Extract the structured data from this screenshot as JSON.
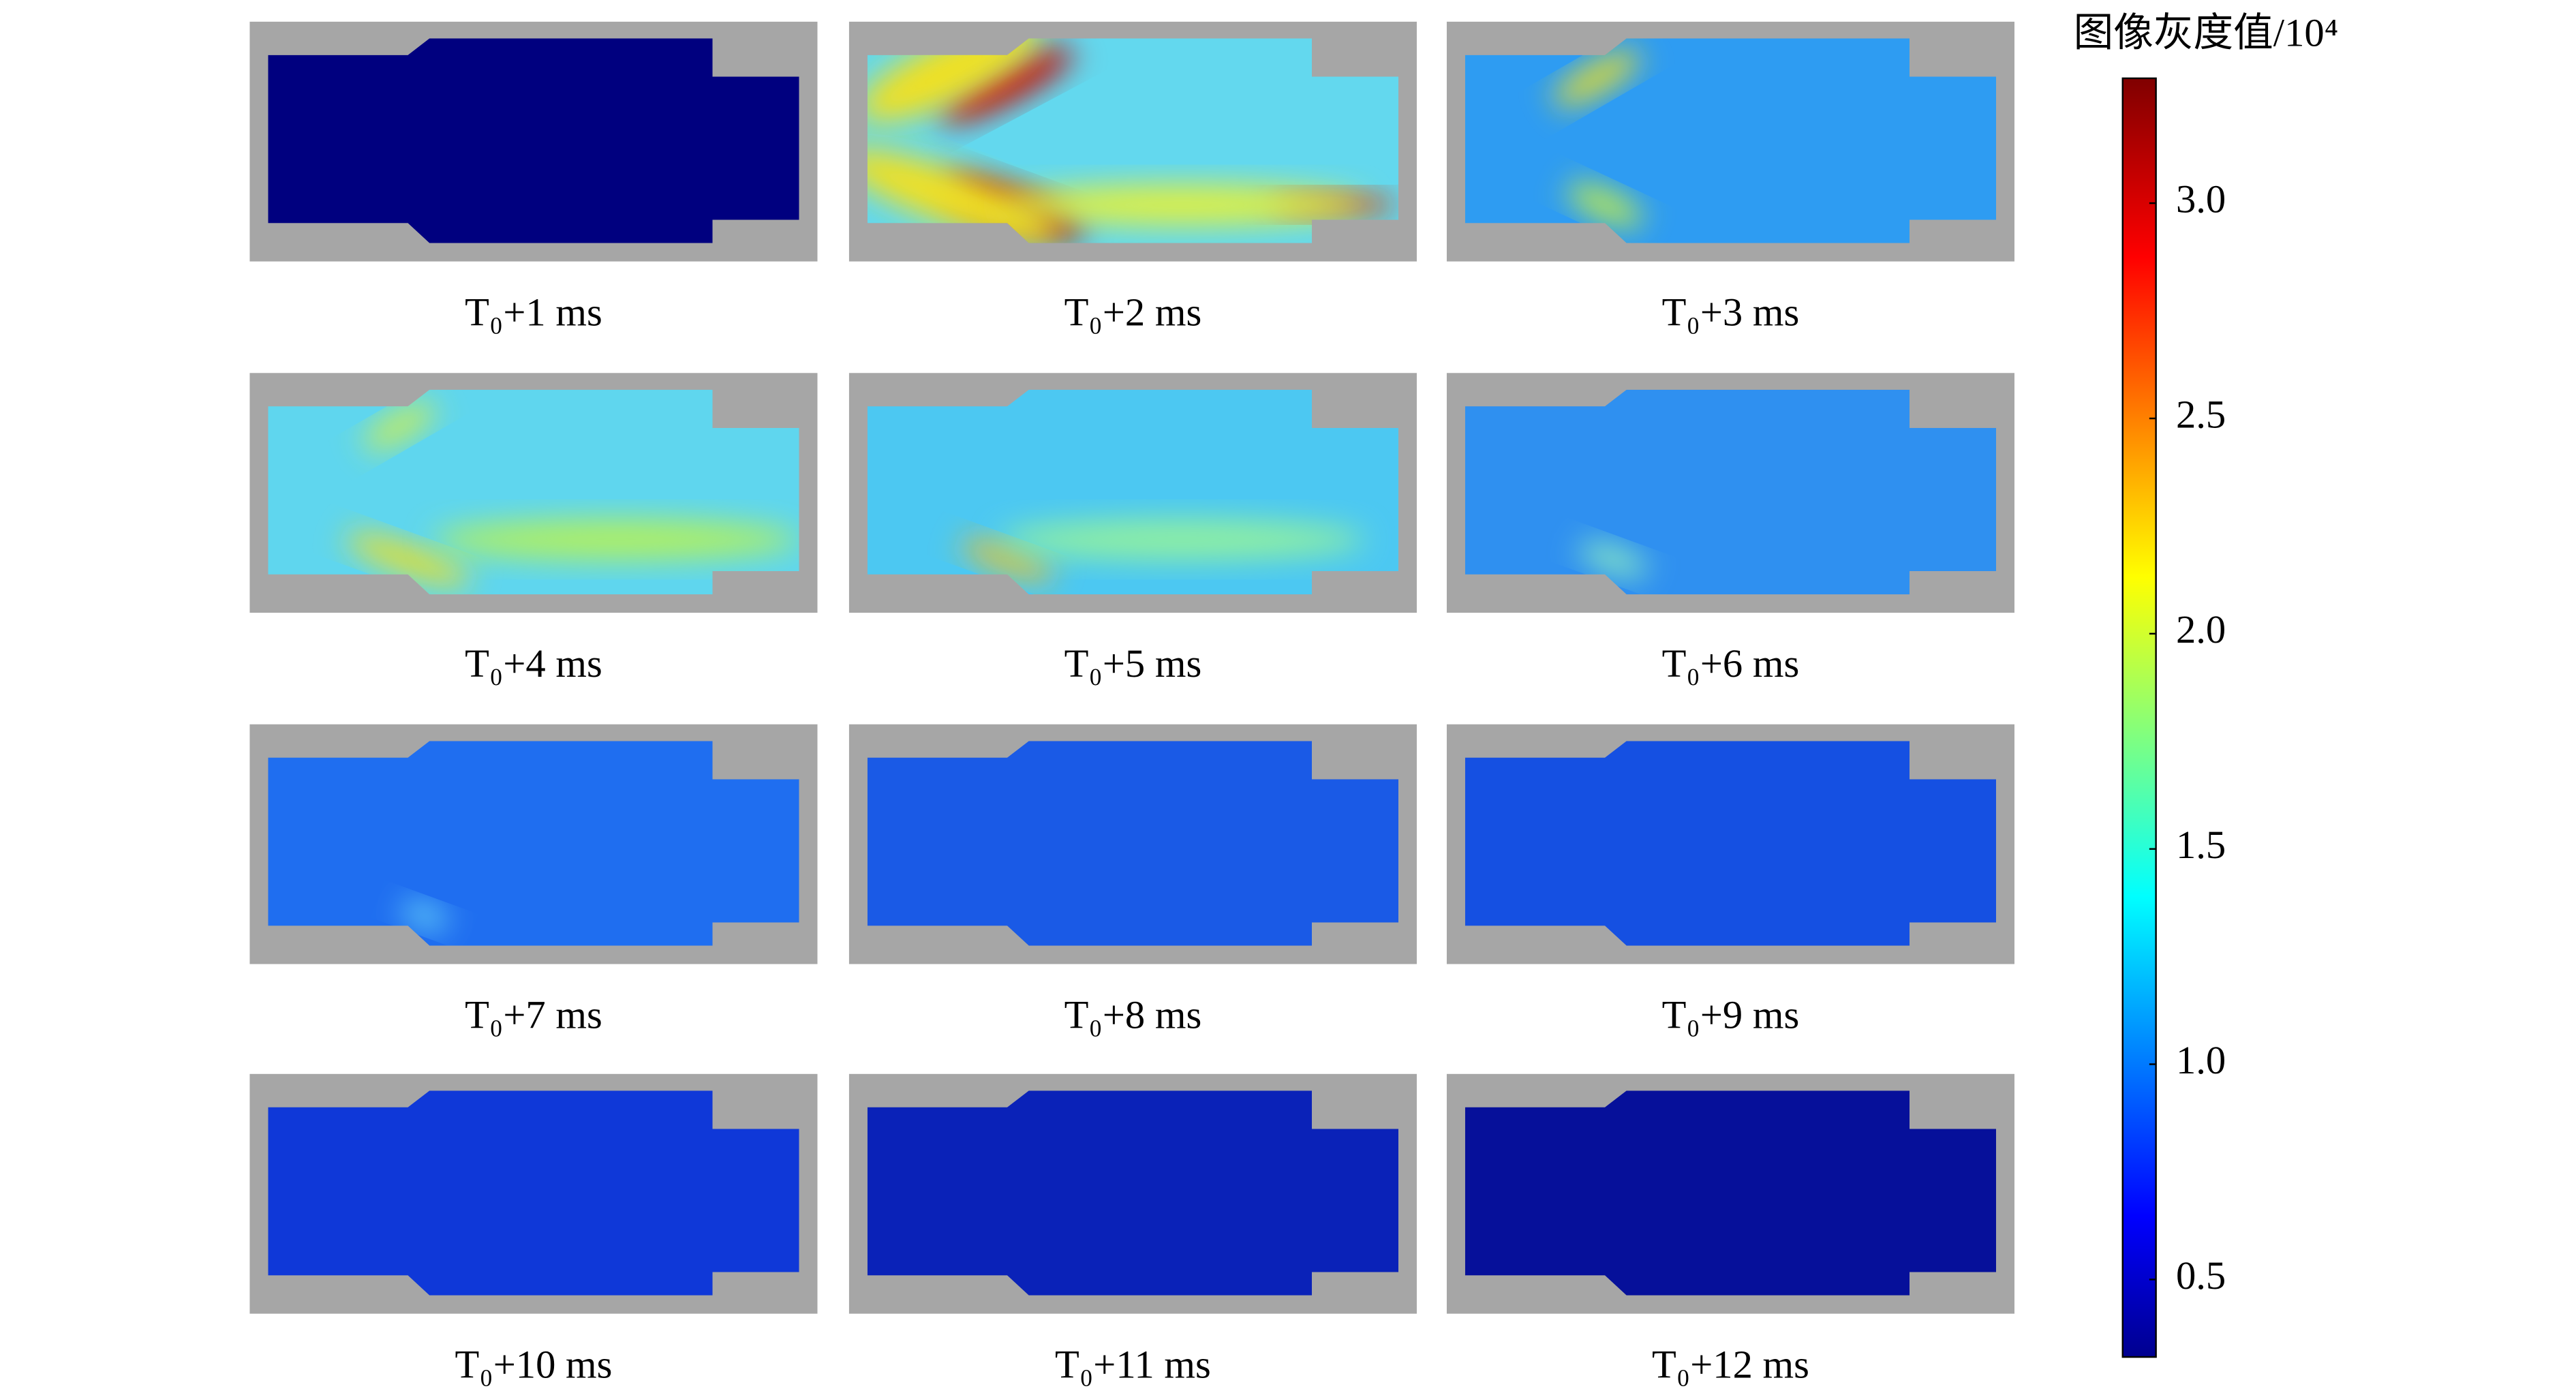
{
  "chart_data": {
    "type": "heatmap_grid",
    "panels": [
      "T₀+1 ms",
      "T₀+2 ms",
      "T₀+3 ms",
      "T₀+4 ms",
      "T₀+5 ms",
      "T₀+6 ms",
      "T₀+7 ms",
      "T₀+8 ms",
      "T₀+9 ms",
      "T₀+10 ms",
      "T₀+11 ms",
      "T₀+12 ms"
    ],
    "colorbar": {
      "title": "图像灰度值/10⁴",
      "colormap": "jet",
      "zlim": [
        0.32,
        3.29
      ],
      "zticks": [
        0.5,
        {
          "value": 1,
          "label": "1.0"
        },
        1.5,
        {
          "value": 2,
          "label": "2.0"
        },
        2.5,
        {
          "value": 3,
          "label": "3.0"
        }
      ]
    }
  }
}
